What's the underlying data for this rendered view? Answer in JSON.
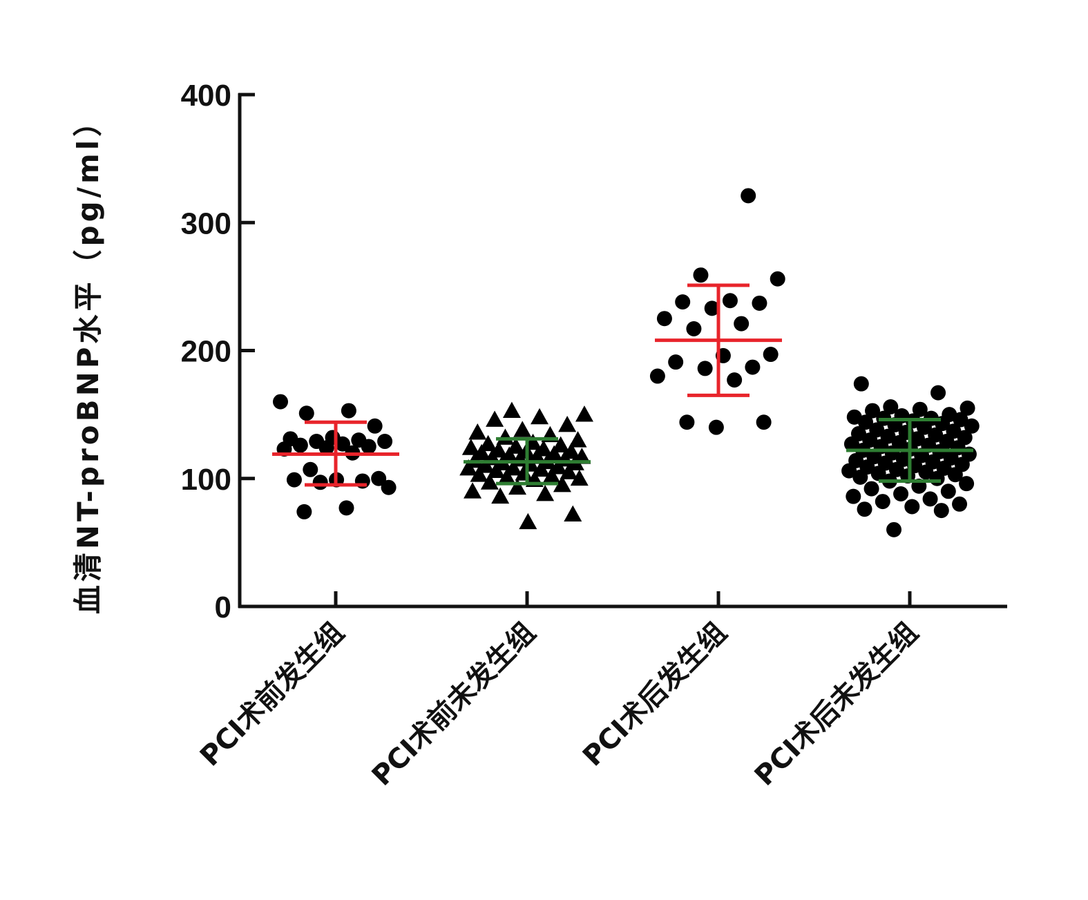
{
  "chart_data": {
    "type": "scatter",
    "title": "",
    "xlabel": "",
    "ylabel": "血清NT-proBNP水平（pg/ml）",
    "ylim": [
      0,
      400
    ],
    "yticks": [
      "0",
      "100",
      "200",
      "300",
      "400"
    ],
    "grid": false,
    "legend": "none",
    "categories": [
      "PCI术前发生组",
      "PCI术前未发生组",
      "PCI术后发生组",
      "PCI术后未发生组"
    ],
    "series": [
      {
        "category": "PCI术前发生组",
        "marker": "circle",
        "bar_color": "#e8242b",
        "mean": 119,
        "sd_low": 95,
        "sd_high": 144,
        "values": [
          160,
          153,
          151,
          141,
          132,
          131,
          130,
          129,
          129,
          127,
          126,
          125,
          124,
          123,
          120,
          107,
          100,
          99,
          99,
          98,
          97,
          93,
          77,
          74
        ]
      },
      {
        "category": "PCI术前未发生组",
        "marker": "triangle",
        "bar_color": "#2e7d32",
        "mean": 113,
        "sd_low": 96,
        "sd_high": 131,
        "values": [
          153,
          150,
          148,
          146,
          142,
          138,
          136,
          134,
          132,
          130,
          128,
          127,
          126,
          125,
          124,
          123,
          122,
          121,
          121,
          120,
          119,
          118,
          117,
          117,
          116,
          115,
          115,
          114,
          113,
          112,
          112,
          111,
          110,
          109,
          108,
          108,
          107,
          106,
          105,
          104,
          103,
          102,
          101,
          100,
          99,
          97,
          95,
          93,
          90,
          88,
          86,
          72,
          66
        ]
      },
      {
        "category": "PCI术后发生组",
        "marker": "circle",
        "bar_color": "#e8242b",
        "mean": 208,
        "sd_low": 165,
        "sd_high": 251,
        "values": [
          321,
          259,
          256,
          239,
          238,
          237,
          233,
          225,
          221,
          217,
          197,
          196,
          191,
          187,
          186,
          180,
          177,
          144,
          144,
          140
        ]
      },
      {
        "category": "PCI术后未发生组",
        "marker": "circle",
        "bar_color": "#2e7d32",
        "mean": 122,
        "sd_low": 98,
        "sd_high": 146,
        "values": [
          174,
          167,
          156,
          155,
          154,
          153,
          150,
          149,
          148,
          147,
          147,
          146,
          145,
          144,
          143,
          142,
          141,
          140,
          138,
          137,
          136,
          135,
          134,
          133,
          132,
          131,
          130,
          129,
          128,
          127,
          126,
          125,
          124,
          123,
          122,
          121,
          120,
          119,
          118,
          117,
          116,
          115,
          114,
          113,
          112,
          111,
          110,
          109,
          108,
          107,
          106,
          105,
          104,
          103,
          102,
          101,
          100,
          98,
          96,
          94,
          92,
          90,
          88,
          86,
          84,
          82,
          80,
          78,
          76,
          75,
          60
        ]
      }
    ]
  }
}
